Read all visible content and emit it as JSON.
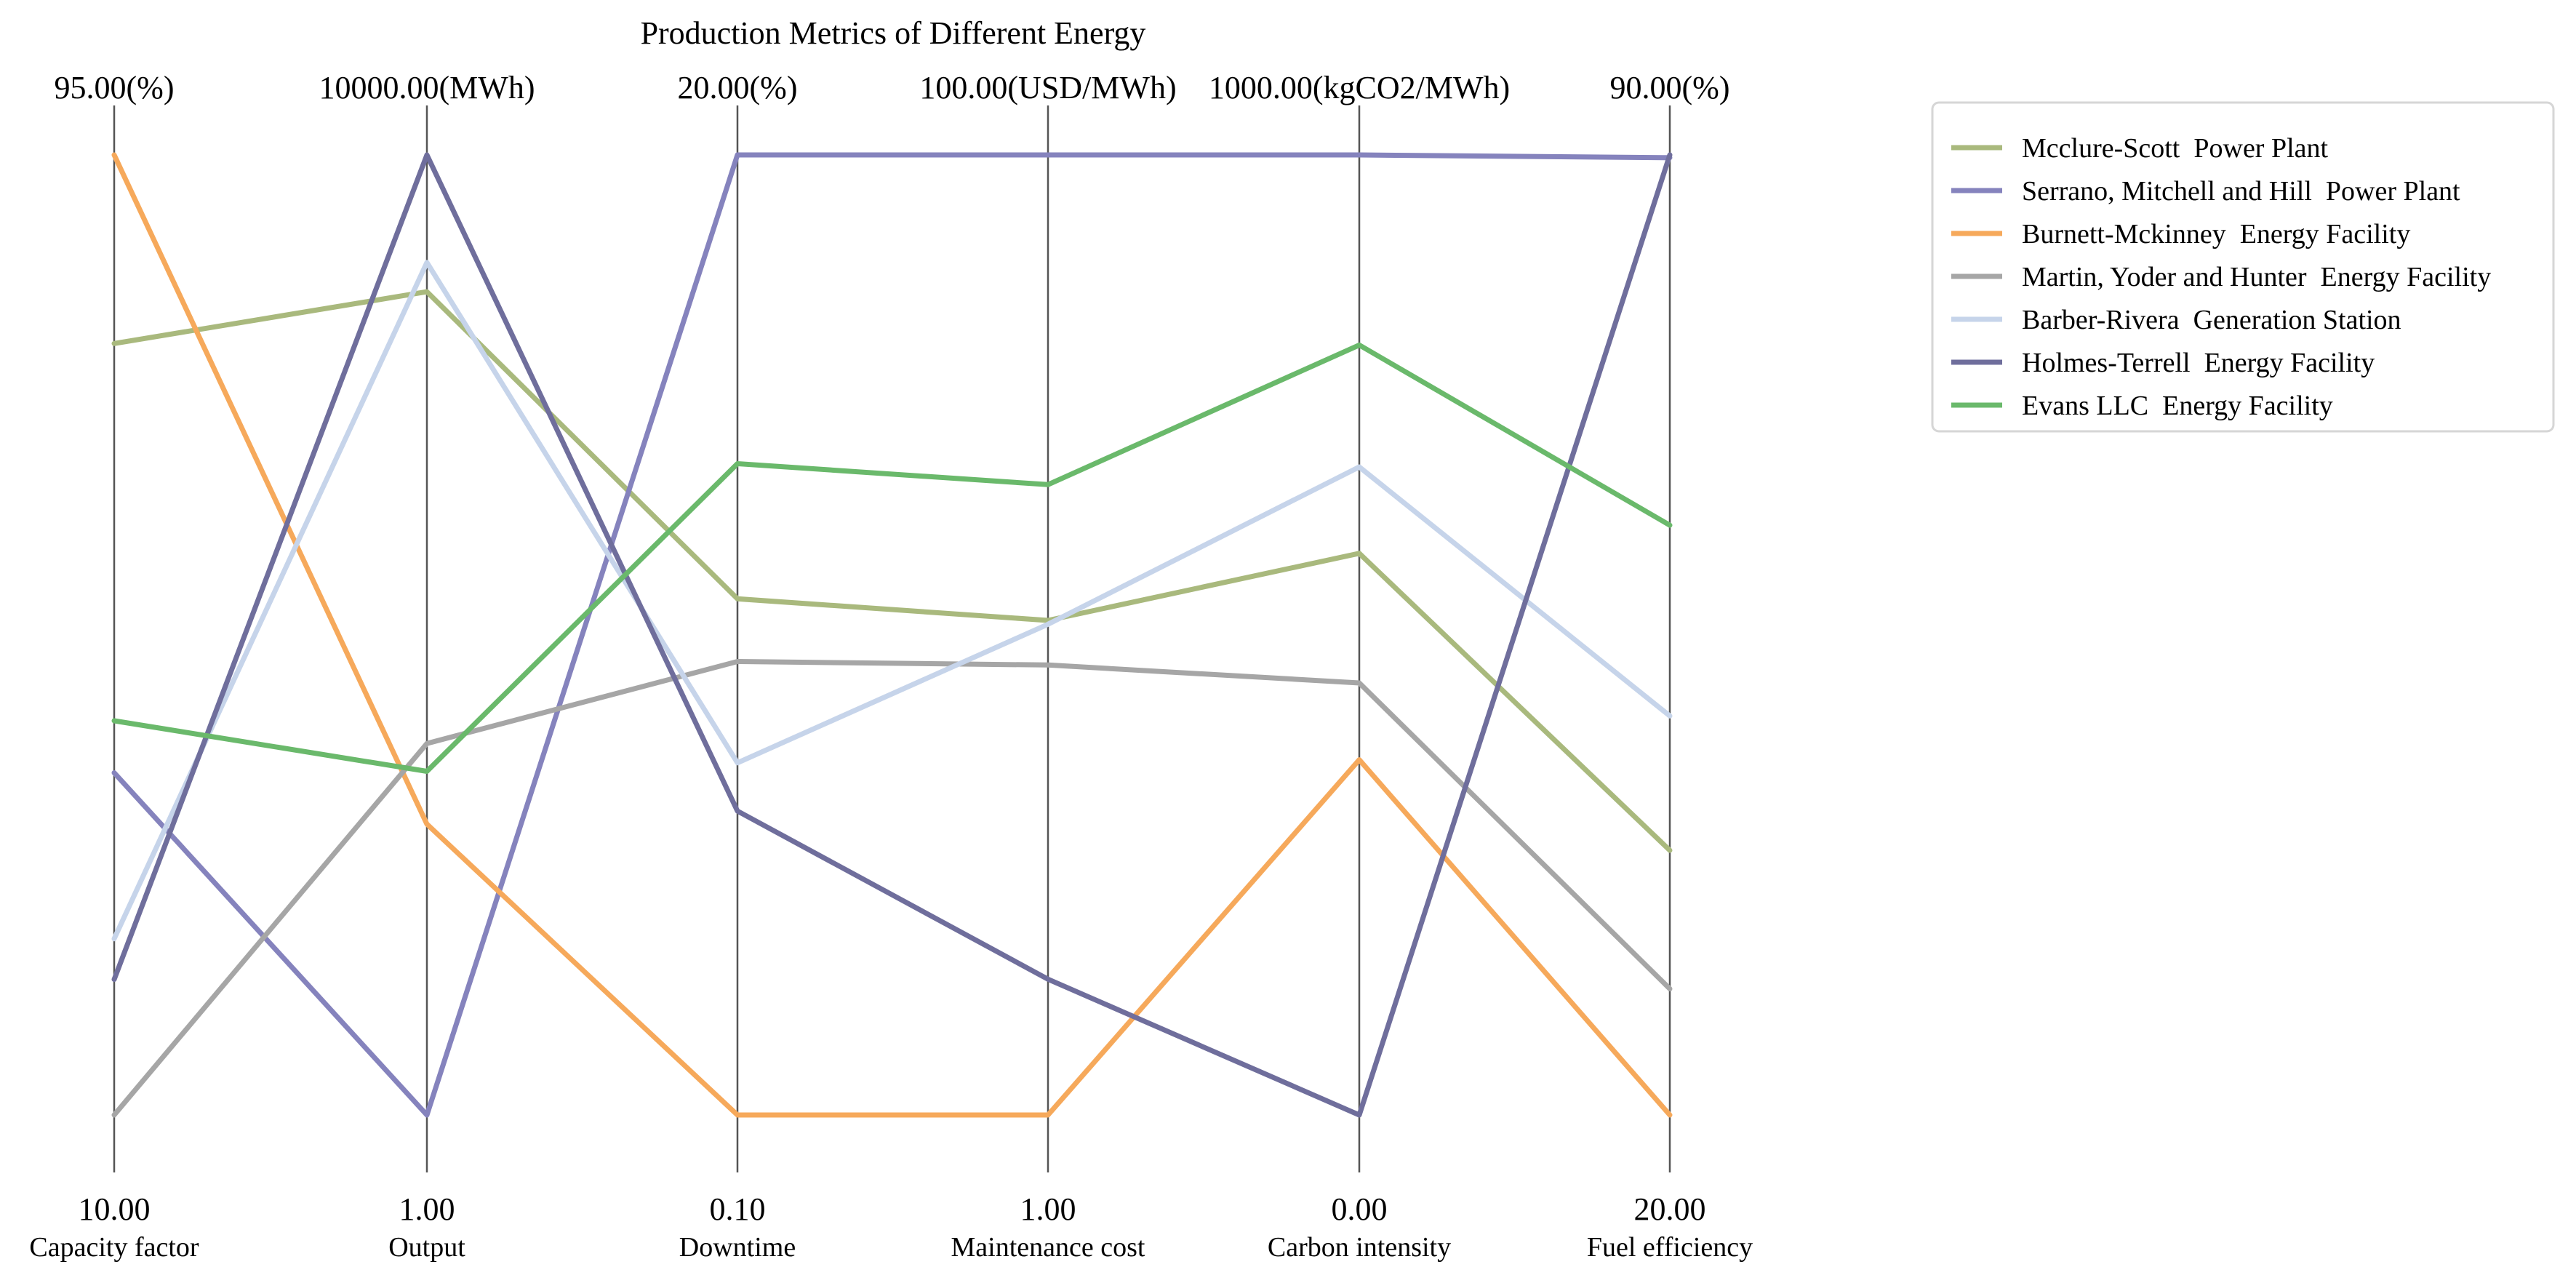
{
  "chart_data": {
    "type": "parallel-coordinates",
    "title": "Production Metrics of Different Energy",
    "axes": [
      {
        "label": "Capacity factor",
        "top_label": "95.00(%)",
        "bottom_label": "10.00",
        "min": 10,
        "max": 95
      },
      {
        "label": "Output",
        "top_label": "10000.00(MWh)",
        "bottom_label": "1.00",
        "min": 1,
        "max": 10000
      },
      {
        "label": "Downtime",
        "top_label": "20.00(%)",
        "bottom_label": "0.10",
        "min": 0.1,
        "max": 20
      },
      {
        "label": "Maintenance cost",
        "top_label": "100.00(USD/MWh)",
        "bottom_label": "1.00",
        "min": 1,
        "max": 100
      },
      {
        "label": "Carbon intensity",
        "top_label": "1000.00(kgCO2/MWh)",
        "bottom_label": "0.00",
        "min": 0,
        "max": 1000
      },
      {
        "label": "Fuel efficiency",
        "top_label": "90.00(%)",
        "bottom_label": "20.00",
        "min": 20,
        "max": 90
      }
    ],
    "series": [
      {
        "name": "Mcclure-Scott  Power Plant",
        "color": "#a9b97d",
        "values": [
          78.3,
          8575,
          10.8,
          52.0,
          585.0,
          39.3
        ]
      },
      {
        "name": "Serrano, Mitchell and Hill  Power Plant",
        "color": "#8583bd",
        "values": [
          40.3,
          1,
          20,
          100,
          1000,
          89.8
        ]
      },
      {
        "name": "Burnett-Mckinney  Energy Facility",
        "color": "#f6a95b",
        "values": [
          95.0,
          3030,
          0.1,
          1.0,
          370.0,
          20.0
        ]
      },
      {
        "name": "Martin, Yoder and Hunter  Energy Facility",
        "color": "#a6a6a6",
        "values": [
          10.0,
          3870,
          9.5,
          47.4,
          450.0,
          29.2
        ]
      },
      {
        "name": "Barber-Rivera  Generation Station",
        "color": "#c6d4ea",
        "values": [
          25.6,
          8880,
          7.4,
          51.6,
          675.0,
          49.1
        ]
      },
      {
        "name": "Holmes-Terrell  Energy Facility",
        "color": "#6f6e9c",
        "values": [
          22.0,
          10000,
          6.4,
          15.0,
          0.0,
          90.0
        ]
      },
      {
        "name": "Evans LLC  Energy Facility",
        "color": "#6ab96b",
        "values": [
          44.9,
          3580,
          13.6,
          66.0,
          802.0,
          63.0
        ]
      }
    ],
    "legend_position": "top-right",
    "grid": false
  }
}
